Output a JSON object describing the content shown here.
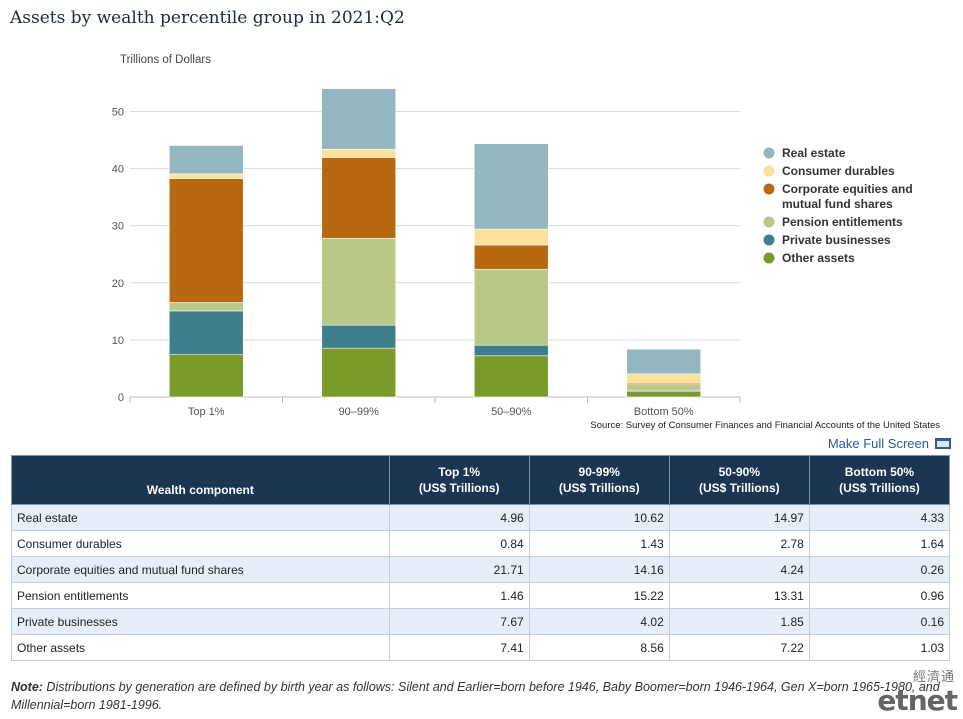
{
  "title": "Assets by wealth percentile group in 2021:Q2",
  "chart_data": {
    "type": "bar",
    "stacked": true,
    "ylabel": "Trillions of Dollars",
    "ylim": [
      0,
      55
    ],
    "yticks": [
      0,
      10,
      20,
      30,
      40,
      50
    ],
    "categories": [
      "Top 1%",
      "90–99%",
      "50–90%",
      "Bottom 50%"
    ],
    "series": [
      {
        "name": "Other assets",
        "color": "#7a9a2a",
        "values": [
          7.41,
          8.56,
          7.22,
          1.03
        ]
      },
      {
        "name": "Private businesses",
        "color": "#3f7f8c",
        "values": [
          7.67,
          4.02,
          1.85,
          0.16
        ]
      },
      {
        "name": "Pension entitlements",
        "color": "#b7c887",
        "values": [
          1.46,
          15.22,
          13.31,
          0.96
        ]
      },
      {
        "name": "Corporate equities and mutual fund shares",
        "color": "#b8680f",
        "values": [
          21.71,
          14.16,
          4.24,
          0.26
        ]
      },
      {
        "name": "Consumer durables",
        "color": "#fbe19a",
        "values": [
          0.84,
          1.43,
          2.78,
          1.64
        ]
      },
      {
        "name": "Real estate",
        "color": "#93b6c1",
        "values": [
          4.96,
          10.62,
          14.97,
          4.33
        ]
      }
    ],
    "legend_order": [
      "Real estate",
      "Consumer durables",
      "Corporate equities and\nmutual fund shares",
      "Pension entitlements",
      "Private businesses",
      "Other assets"
    ],
    "legend_position": "right",
    "source": "Source: Survey of Consumer Finances and Financial Accounts of the United States",
    "grid": true
  },
  "fullscreen_label": "Make Full Screen",
  "table": {
    "headers": [
      "Wealth component",
      "Top 1%\n(US$ Trillions)",
      "90-99%\n(US$ Trillions)",
      "50-90%\n(US$ Trillions)",
      "Bottom 50%\n(US$ Trillions)"
    ],
    "rows": [
      [
        "Real estate",
        "4.96",
        "10.62",
        "14.97",
        "4.33"
      ],
      [
        "Consumer durables",
        "0.84",
        "1.43",
        "2.78",
        "1.64"
      ],
      [
        "Corporate equities and mutual fund shares",
        "21.71",
        "14.16",
        "4.24",
        "0.26"
      ],
      [
        "Pension entitlements",
        "1.46",
        "15.22",
        "13.31",
        "0.96"
      ],
      [
        "Private businesses",
        "7.67",
        "4.02",
        "1.85",
        "0.16"
      ],
      [
        "Other assets",
        "7.41",
        "8.56",
        "7.22",
        "1.03"
      ]
    ]
  },
  "note": {
    "label": "Note:",
    "text": " Distributions by generation are defined by birth year as follows: Silent and Earlier=born before 1946, Baby Boomer=born 1946-1964, Gen X=born 1965-1980, and Millennial=born 1981-1996."
  },
  "logo": {
    "text": "etnet",
    "cn": "經濟通"
  }
}
